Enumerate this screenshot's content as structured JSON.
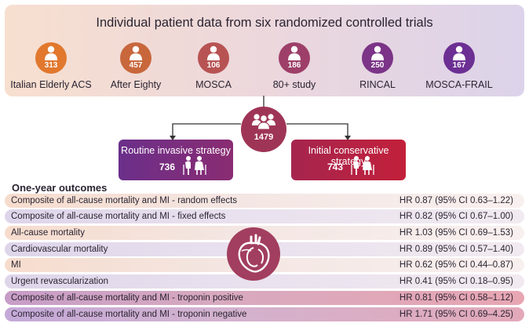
{
  "title": "Individual patient data from six randomized controlled trials",
  "trials": [
    {
      "name": "Italian Elderly ACS",
      "n": "313",
      "color": "#e1782e"
    },
    {
      "name": "After Eighty",
      "n": "457",
      "color": "#c8673c"
    },
    {
      "name": "MOSCA",
      "n": "106",
      "color": "#b85353"
    },
    {
      "name": "80+ study",
      "n": "186",
      "color": "#9d3f69"
    },
    {
      "name": "RINCAL",
      "n": "250",
      "color": "#7b3487"
    },
    {
      "name": "MOSCA-FRAIL",
      "n": "167",
      "color": "#6c2f93"
    }
  ],
  "total": {
    "n": "1479",
    "icon": "patients-group-icon"
  },
  "strategies": {
    "invasive": {
      "label": "Routine invasive strategy",
      "n": "736"
    },
    "conservative": {
      "label": "Initial conservative strategy",
      "n": "743"
    }
  },
  "outcomes_heading": "One-year outcomes",
  "outcomes": [
    {
      "name": "Composite of all-cause mortality and MI - random effects",
      "hr": "HR 0.87 (95% CI 0.63–1.22)"
    },
    {
      "name": "Composite of all-cause mortality and MI - fixed effects",
      "hr": "HR 0.82 (95% CI 0.67–1.00)"
    },
    {
      "name": "All-cause mortality",
      "hr": "HR 1.03 (95% CI 0.69–1.53)"
    },
    {
      "name": "Cardiovascular mortality",
      "hr": "HR 0.89 (95% CI 0.57–1.40)"
    },
    {
      "name": "MI",
      "hr": "HR 0.62 (95% CI 0.44–0.87)"
    },
    {
      "name": "Urgent revascularization",
      "hr": "HR 0.41 (95% CI 0.18–0.95)"
    },
    {
      "name": "Composite of all-cause mortality and MI - troponin positive",
      "hr": "HR 0.81 (95% CI 0.58–1.12)"
    },
    {
      "name": "Composite of all-cause mortality and MI - troponin negative",
      "hr": "HR 1.71 (95% CI 0.69–4.25)"
    }
  ],
  "icons": {
    "trial": "person-icon",
    "strategy": "elderly-couple-icon",
    "outcomes": "heart-icon"
  }
}
